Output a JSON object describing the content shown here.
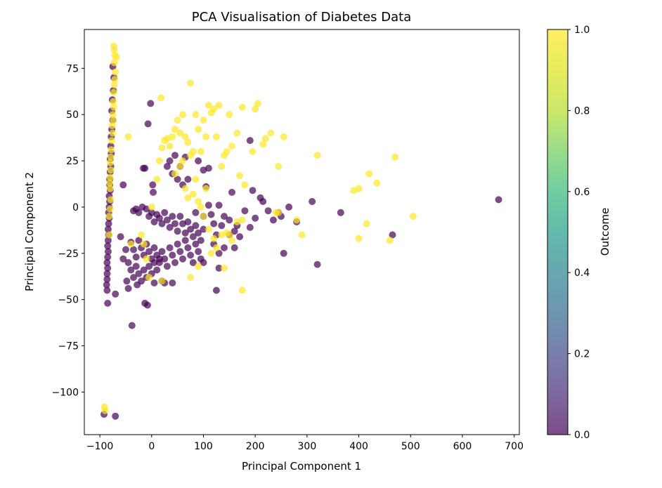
{
  "chart_data": {
    "type": "scatter",
    "title": "PCA Visualisation of Diabetes Data",
    "xlabel": "Principal Component 1",
    "ylabel": "Principal Component 2",
    "xlim": [
      -130,
      710
    ],
    "ylim": [
      -123,
      96
    ],
    "xticks": [
      -100,
      0,
      100,
      200,
      300,
      400,
      500,
      600,
      700
    ],
    "yticks": [
      -100,
      -75,
      -50,
      -25,
      0,
      25,
      50,
      75
    ],
    "xtick_labels": [
      "−100",
      "0",
      "100",
      "200",
      "300",
      "400",
      "500",
      "600",
      "700"
    ],
    "ytick_labels": [
      "−100",
      "−75",
      "−50",
      "−25",
      "0",
      "25",
      "50",
      "75"
    ],
    "grid": false,
    "colorbar": {
      "label": "Outcome",
      "range": [
        0.0,
        1.0
      ],
      "ticks": [
        0.0,
        0.2,
        0.4,
        0.6,
        0.8,
        1.0
      ],
      "tick_labels": [
        "0.0",
        "0.2",
        "0.4",
        "0.6",
        "0.8",
        "1.0"
      ],
      "colormap": "viridis",
      "alpha": 0.7
    },
    "colors": {
      "outcome_0": "#440154",
      "outcome_1": "#fde725"
    },
    "series": [
      {
        "outcome": 0,
        "points": [
          [
            -75,
            76
          ],
          [
            -73,
            70
          ],
          [
            -74,
            63
          ],
          [
            -76,
            58
          ],
          [
            -77,
            52
          ],
          [
            -75,
            47
          ],
          [
            -77,
            42
          ],
          [
            -78,
            38
          ],
          [
            -79,
            33
          ],
          [
            -78,
            29
          ],
          [
            -80,
            26
          ],
          [
            -79,
            22
          ],
          [
            -80,
            19
          ],
          [
            -81,
            15
          ],
          [
            -81,
            12
          ],
          [
            -80,
            9
          ],
          [
            -82,
            6
          ],
          [
            -81,
            3
          ],
          [
            -82,
            0
          ],
          [
            -83,
            -3
          ],
          [
            -82,
            -6
          ],
          [
            -83,
            -9
          ],
          [
            -84,
            -12
          ],
          [
            -83,
            -15
          ],
          [
            -84,
            -18
          ],
          [
            -85,
            -21
          ],
          [
            -84,
            -24
          ],
          [
            -85,
            -27
          ],
          [
            -86,
            -30
          ],
          [
            -85,
            -33
          ],
          [
            -86,
            -36
          ],
          [
            -86,
            -39
          ],
          [
            -87,
            -42
          ],
          [
            -86,
            -45
          ],
          [
            -85,
            -52
          ],
          [
            -70,
            -47
          ],
          [
            -92,
            -112
          ],
          [
            -70,
            -113
          ],
          [
            -55,
            12
          ],
          [
            -2,
            56
          ],
          [
            -7,
            45
          ],
          [
            -16,
            21
          ],
          [
            -13,
            21
          ],
          [
            2,
            12
          ],
          [
            3,
            8
          ],
          [
            -35,
            -2
          ],
          [
            -30,
            -1
          ],
          [
            -25,
            -3
          ],
          [
            -18,
            0
          ],
          [
            -10,
            -1
          ],
          [
            -5,
            -5
          ],
          [
            0,
            -3
          ],
          [
            5,
            -8
          ],
          [
            10,
            -4
          ],
          [
            15,
            -6
          ],
          [
            20,
            -9
          ],
          [
            25,
            -3
          ],
          [
            30,
            -7
          ],
          [
            35,
            -11
          ],
          [
            40,
            -5
          ],
          [
            45,
            -9
          ],
          [
            50,
            -13
          ],
          [
            55,
            -5
          ],
          [
            60,
            -9
          ],
          [
            65,
            -14
          ],
          [
            70,
            -8
          ],
          [
            75,
            -12
          ],
          [
            80,
            -16
          ],
          [
            85,
            -10
          ],
          [
            90,
            -14
          ],
          [
            95,
            -18
          ],
          [
            100,
            -12
          ],
          [
            -40,
            -19
          ],
          [
            -35,
            -23
          ],
          [
            -30,
            -27
          ],
          [
            -25,
            -18
          ],
          [
            -20,
            -22
          ],
          [
            -15,
            -26
          ],
          [
            -10,
            -20
          ],
          [
            -5,
            -24
          ],
          [
            0,
            -28
          ],
          [
            5,
            -22
          ],
          [
            10,
            -26
          ],
          [
            15,
            -30
          ],
          [
            20,
            -24
          ],
          [
            25,
            -28
          ],
          [
            30,
            -32
          ],
          [
            35,
            -22
          ],
          [
            40,
            -26
          ],
          [
            45,
            -30
          ],
          [
            50,
            -20
          ],
          [
            55,
            -24
          ],
          [
            60,
            -28
          ],
          [
            65,
            -18
          ],
          [
            70,
            -22
          ],
          [
            75,
            -26
          ],
          [
            80,
            -30
          ],
          [
            85,
            -20
          ],
          [
            90,
            -24
          ],
          [
            95,
            -28
          ],
          [
            -45,
            -30
          ],
          [
            -40,
            -34
          ],
          [
            -35,
            -38
          ],
          [
            -30,
            -32
          ],
          [
            -25,
            -36
          ],
          [
            -20,
            -40
          ],
          [
            -15,
            -34
          ],
          [
            -10,
            -38
          ],
          [
            -5,
            -32
          ],
          [
            0,
            -36
          ],
          [
            5,
            -30
          ],
          [
            10,
            -34
          ],
          [
            15,
            -28
          ],
          [
            20,
            -40
          ],
          [
            -60,
            -16
          ],
          [
            -50,
            -23
          ],
          [
            -45,
            -44
          ],
          [
            -38,
            -64
          ],
          [
            -13,
            -52
          ],
          [
            -8,
            -53
          ],
          [
            5,
            -41
          ],
          [
            25,
            -41
          ],
          [
            40,
            -41
          ],
          [
            -55,
            -28
          ],
          [
            -48,
            -40
          ],
          [
            -28,
            -42
          ],
          [
            30,
            22
          ],
          [
            35,
            25
          ],
          [
            40,
            18
          ],
          [
            45,
            28
          ],
          [
            50,
            15
          ],
          [
            55,
            22
          ],
          [
            60,
            12
          ],
          [
            65,
            27
          ],
          [
            70,
            15
          ],
          [
            90,
            25
          ],
          [
            100,
            20
          ],
          [
            105,
            11
          ],
          [
            110,
            1
          ],
          [
            115,
            -4
          ],
          [
            120,
            -9
          ],
          [
            125,
            -15
          ],
          [
            130,
            1
          ],
          [
            135,
            -10
          ],
          [
            140,
            -5
          ],
          [
            150,
            -7
          ],
          [
            155,
            8
          ],
          [
            160,
            -13
          ],
          [
            165,
            -10
          ],
          [
            170,
            -16
          ],
          [
            180,
            -2
          ],
          [
            190,
            -11
          ],
          [
            195,
            9
          ],
          [
            200,
            -6
          ],
          [
            210,
            5
          ],
          [
            215,
            3
          ],
          [
            225,
            -2
          ],
          [
            235,
            -7
          ],
          [
            245,
            -3
          ],
          [
            250,
            -5
          ],
          [
            255,
            -25
          ],
          [
            265,
            0
          ],
          [
            280,
            -8
          ],
          [
            310,
            3
          ],
          [
            320,
            -31
          ],
          [
            365,
            -3
          ],
          [
            465,
            -15
          ],
          [
            670,
            4
          ],
          [
            190,
            36
          ],
          [
            110,
            21
          ],
          [
            100,
            -5
          ],
          [
            120,
            -20
          ],
          [
            130,
            -25
          ],
          [
            125,
            -45
          ],
          [
            140,
            -22
          ],
          [
            150,
            -15
          ],
          [
            160,
            -22
          ],
          [
            130,
            -33
          ],
          [
            100,
            -30
          ],
          [
            85,
            -3
          ]
        ]
      },
      {
        "outcome": 1,
        "points": [
          [
            -73,
            87
          ],
          [
            -72,
            85
          ],
          [
            -71,
            82
          ],
          [
            -68,
            81
          ],
          [
            -72,
            78
          ],
          [
            -70,
            73
          ],
          [
            -71,
            69
          ],
          [
            -72,
            66
          ],
          [
            -73,
            62
          ],
          [
            -74,
            57
          ],
          [
            -73,
            54
          ],
          [
            -75,
            50
          ],
          [
            -74,
            47
          ],
          [
            -76,
            44
          ],
          [
            -75,
            40
          ],
          [
            -77,
            36
          ],
          [
            -78,
            31
          ],
          [
            -79,
            27
          ],
          [
            -80,
            24
          ],
          [
            -79,
            20
          ],
          [
            -80,
            16
          ],
          [
            -81,
            13
          ],
          [
            -80,
            10
          ],
          [
            -79,
            4
          ],
          [
            -80,
            -1
          ],
          [
            -82,
            -5
          ],
          [
            -82,
            -15
          ],
          [
            -91,
            -108
          ],
          [
            -90,
            -110
          ],
          [
            -45,
            38
          ],
          [
            18,
            59
          ],
          [
            20,
            32
          ],
          [
            25,
            36
          ],
          [
            30,
            37
          ],
          [
            35,
            33
          ],
          [
            40,
            38
          ],
          [
            45,
            42
          ],
          [
            50,
            47
          ],
          [
            55,
            40
          ],
          [
            60,
            50
          ],
          [
            65,
            38
          ],
          [
            70,
            35
          ],
          [
            75,
            67
          ],
          [
            80,
            30
          ],
          [
            85,
            50
          ],
          [
            90,
            42
          ],
          [
            95,
            30
          ],
          [
            100,
            47
          ],
          [
            105,
            38
          ],
          [
            110,
            55
          ],
          [
            115,
            51
          ],
          [
            120,
            53
          ],
          [
            125,
            38
          ],
          [
            130,
            55
          ],
          [
            135,
            22
          ],
          [
            140,
            28
          ],
          [
            145,
            30
          ],
          [
            150,
            50
          ],
          [
            155,
            33
          ],
          [
            165,
            40
          ],
          [
            170,
            17
          ],
          [
            175,
            54
          ],
          [
            180,
            12
          ],
          [
            195,
            30
          ],
          [
            200,
            53
          ],
          [
            205,
            56
          ],
          [
            215,
            34
          ],
          [
            220,
            37
          ],
          [
            230,
            40
          ],
          [
            245,
            22
          ],
          [
            255,
            38
          ],
          [
            320,
            28
          ],
          [
            390,
            9
          ],
          [
            400,
            10
          ],
          [
            420,
            18
          ],
          [
            435,
            13
          ],
          [
            470,
            27
          ],
          [
            415,
            -9
          ],
          [
            400,
            -17
          ],
          [
            460,
            -18
          ],
          [
            505,
            -5
          ],
          [
            280,
            -7
          ],
          [
            290,
            -15
          ],
          [
            240,
            -3
          ],
          [
            245,
            -3
          ],
          [
            175,
            -45
          ],
          [
            165,
            -8
          ],
          [
            150,
            -15
          ],
          [
            140,
            -33
          ],
          [
            115,
            -25
          ],
          [
            90,
            -32
          ],
          [
            75,
            -38
          ],
          [
            20,
            -40
          ],
          [
            -10,
            -28
          ],
          [
            -5,
            -38
          ],
          [
            -40,
            -20
          ],
          [
            -20,
            -15
          ],
          [
            0,
            0
          ],
          [
            10,
            15
          ],
          [
            15,
            25
          ],
          [
            45,
            18
          ],
          [
            55,
            22
          ],
          [
            60,
            25
          ],
          [
            65,
            10
          ],
          [
            70,
            5
          ],
          [
            75,
            28
          ],
          [
            80,
            7
          ],
          [
            85,
            15
          ],
          [
            90,
            3
          ],
          [
            95,
            0
          ],
          [
            100,
            -5
          ],
          [
            105,
            10
          ],
          [
            110,
            -12
          ],
          [
            120,
            -17
          ],
          [
            125,
            -22
          ],
          [
            135,
            -15
          ],
          [
            145,
            -14
          ],
          [
            155,
            -18
          ],
          [
            175,
            -7
          ],
          [
            -15,
            -20
          ]
        ]
      }
    ]
  }
}
